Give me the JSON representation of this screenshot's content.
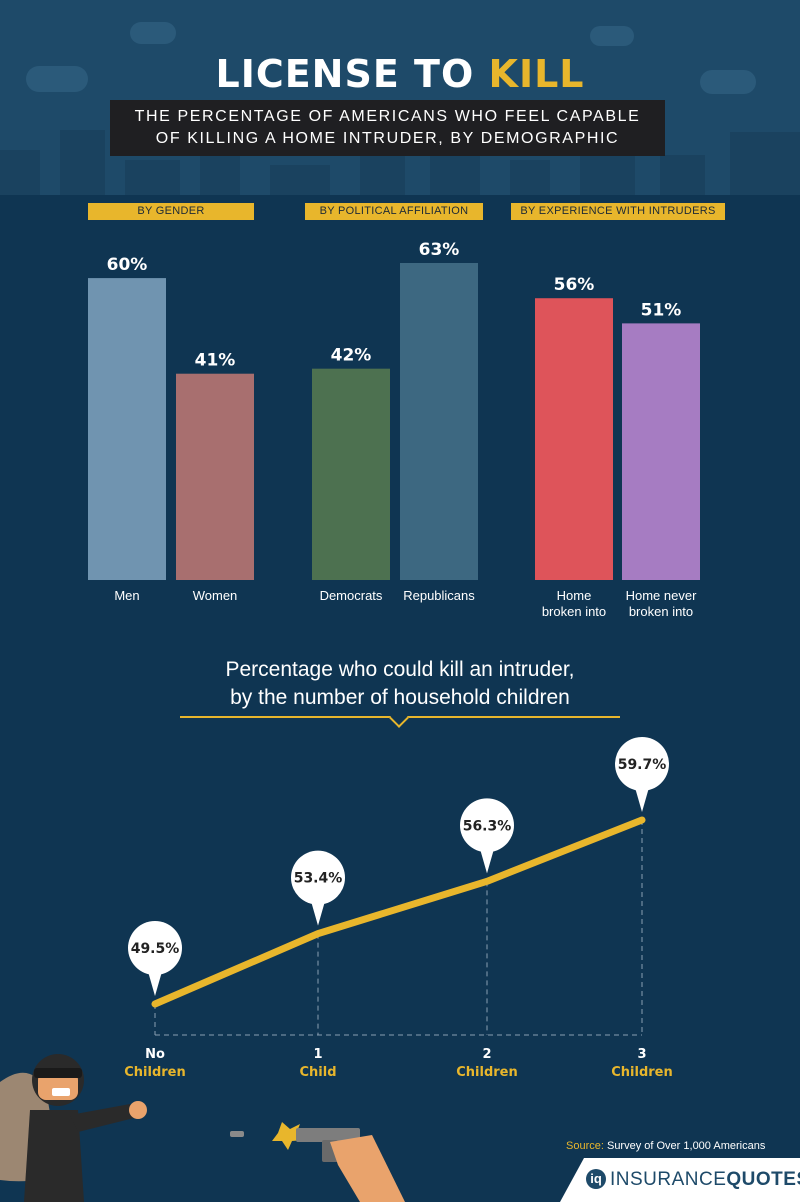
{
  "header": {
    "title_main": "LICENSE TO ",
    "title_accent": "KILL",
    "subtitle_line1": "THE PERCENTAGE OF AMERICANS WHO FEEL CAPABLE",
    "subtitle_line2": "OF KILLING A HOME INTRUDER, BY DEMOGRAPHIC"
  },
  "sections": {
    "gender": "BY GENDER",
    "political": "BY POLITICAL AFFILIATION",
    "experience": "BY EXPERIENCE WITH INTRUDERS"
  },
  "colors": {
    "accent": "#e8b62c",
    "background": "#0f3552",
    "header_bg": "#1e4a69"
  },
  "chart_data": [
    {
      "type": "bar",
      "categories": [
        "Men",
        "Women",
        "Democrats",
        "Republicans",
        "Home broken into",
        "Home never broken into"
      ],
      "category_lines": [
        [
          "Men"
        ],
        [
          "Women"
        ],
        [
          "Democrats"
        ],
        [
          "Republicans"
        ],
        [
          "Home",
          "broken into"
        ],
        [
          "Home never",
          "broken into"
        ]
      ],
      "values": [
        60,
        41,
        42,
        63,
        56,
        51
      ],
      "value_labels": [
        "60%",
        "41%",
        "42%",
        "63%",
        "56%",
        "51%"
      ],
      "groups": [
        "BY GENDER",
        "BY GENDER",
        "BY POLITICAL AFFILIATION",
        "BY POLITICAL AFFILIATION",
        "BY EXPERIENCE WITH INTRUDERS",
        "BY EXPERIENCE WITH INTRUDERS"
      ],
      "colors": [
        "#7094b0",
        "#a86f6f",
        "#4d7150",
        "#3d6881",
        "#de545a",
        "#a67cc2"
      ],
      "ylim": [
        0,
        63
      ]
    },
    {
      "type": "line",
      "title_line1": "Percentage who could kill an intruder,",
      "title_line2": "by the number of household children",
      "x": [
        "No Children",
        "1 Child",
        "2 Children",
        "3 Children"
      ],
      "x_lines": [
        [
          "No",
          "Children"
        ],
        [
          "1",
          "Child"
        ],
        [
          "2",
          "Children"
        ],
        [
          "3",
          "Children"
        ]
      ],
      "values": [
        49.5,
        53.4,
        56.3,
        59.7
      ],
      "value_labels": [
        "49.5%",
        "53.4%",
        "56.3%",
        "59.7%"
      ],
      "color": "#e8b62c"
    }
  ],
  "source": {
    "label": "Source:",
    "text": " Survey of Over 1,000 Americans"
  },
  "logo": {
    "mark": "iq",
    "text_light": "INSURANCE",
    "text_bold": "QUOTES"
  }
}
